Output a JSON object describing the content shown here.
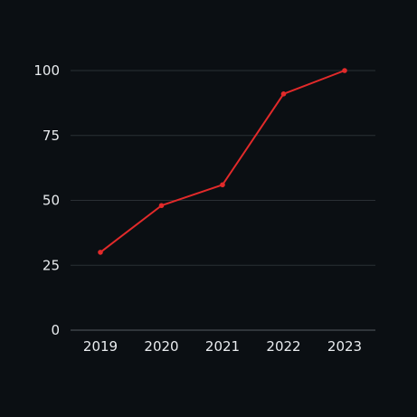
{
  "chart_data": {
    "type": "line",
    "title": "",
    "xlabel": "",
    "ylabel": "",
    "categories": [
      "2019",
      "2020",
      "2021",
      "2022",
      "2023"
    ],
    "series": [
      {
        "values": [
          30,
          48,
          56,
          91,
          100
        ]
      }
    ],
    "ylim": [
      0,
      100
    ],
    "yticks": [
      0,
      25,
      50,
      75,
      100
    ],
    "grid": true,
    "legend": "none",
    "colors": {
      "background": "#0b0f13",
      "series": "#e22a2a",
      "grid": "#2a3035",
      "text": "#e9ecef"
    }
  }
}
